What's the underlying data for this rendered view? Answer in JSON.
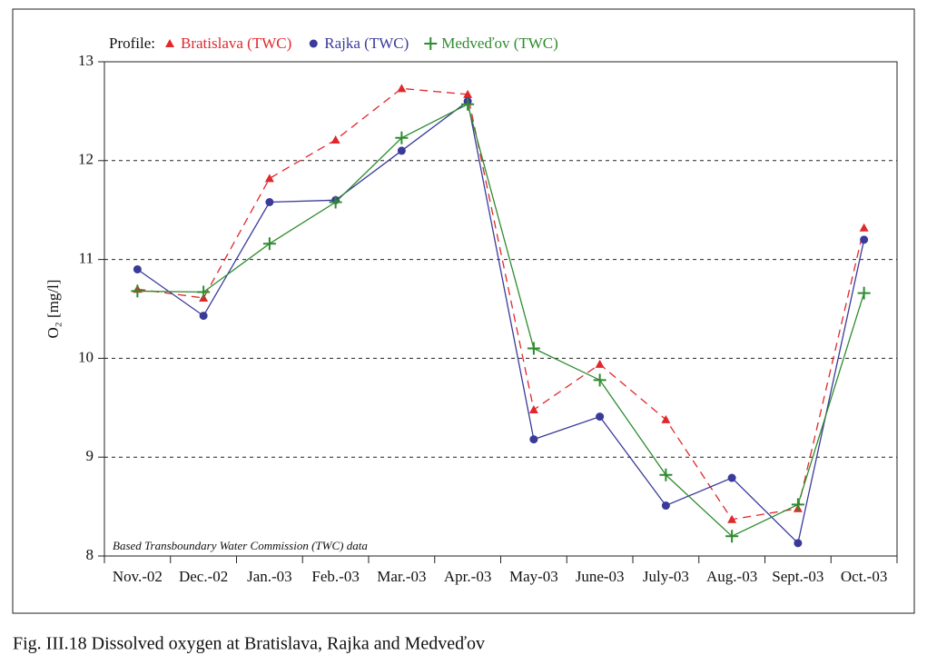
{
  "chart_data": {
    "type": "line",
    "legend_title": "Profile:",
    "ylabel": "O₂ [mg/l]",
    "annotation": "Based Transboundary Water Commission (TWC) data",
    "caption": "Fig. III.18  Dissolved oxygen at Bratislava, Rajka and Medveďov",
    "categories": [
      "Nov.-02",
      "Dec.-02",
      "Jan.-03",
      "Feb.-03",
      "Mar.-03",
      "Apr.-03",
      "May-03",
      "June-03",
      "July-03",
      "Aug.-03",
      "Sept.-03",
      "Oct.-03"
    ],
    "series": [
      {
        "name": "Bratislava (TWC)",
        "color": "#e0282c",
        "marker": "triangle",
        "dash": true,
        "values": [
          10.7,
          10.61,
          11.82,
          12.21,
          12.73,
          12.67,
          9.48,
          9.94,
          9.38,
          8.37,
          8.48,
          11.32
        ]
      },
      {
        "name": "Rajka (TWC)",
        "color": "#3a3a9a",
        "marker": "circle",
        "dash": false,
        "values": [
          10.9,
          10.43,
          11.58,
          11.6,
          12.1,
          12.6,
          9.18,
          9.41,
          8.51,
          8.79,
          8.13,
          11.2
        ]
      },
      {
        "name": "Medveďov (TWC)",
        "color": "#2e8b2e",
        "marker": "plus",
        "dash": false,
        "values": [
          10.68,
          10.67,
          11.16,
          11.58,
          12.23,
          12.57,
          10.1,
          9.78,
          8.82,
          8.2,
          8.52,
          10.66
        ]
      }
    ],
    "ylim": [
      8,
      13
    ],
    "yticks": [
      8,
      9,
      10,
      11,
      12,
      13
    ],
    "grid": true
  }
}
